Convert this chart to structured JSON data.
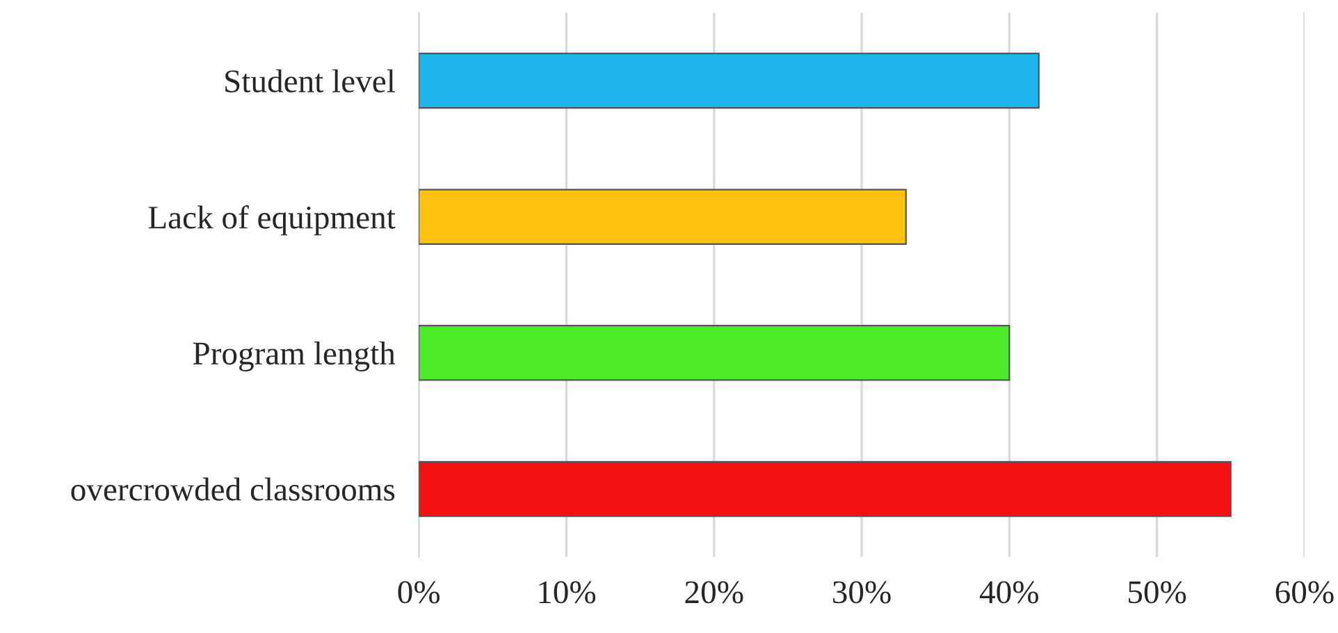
{
  "chart_data": {
    "type": "bar",
    "orientation": "horizontal",
    "categories": [
      "Student level",
      "Lack of equipment",
      "Program length",
      "overcrowded classrooms"
    ],
    "values": [
      42,
      33,
      40,
      55
    ],
    "colors": [
      "#1eb4ec",
      "#ffc20e",
      "#4ded2c",
      "#f21212"
    ],
    "xlim": [
      0,
      60
    ],
    "xticks": [
      {
        "value": 0,
        "label": "0%"
      },
      {
        "value": 10,
        "label": "10%"
      },
      {
        "value": 20,
        "label": "20%"
      },
      {
        "value": 30,
        "label": "30%"
      },
      {
        "value": 40,
        "label": "40%"
      },
      {
        "value": 50,
        "label": "50%"
      },
      {
        "value": 60,
        "label": "60%"
      }
    ],
    "grid": "x",
    "legend": false
  }
}
